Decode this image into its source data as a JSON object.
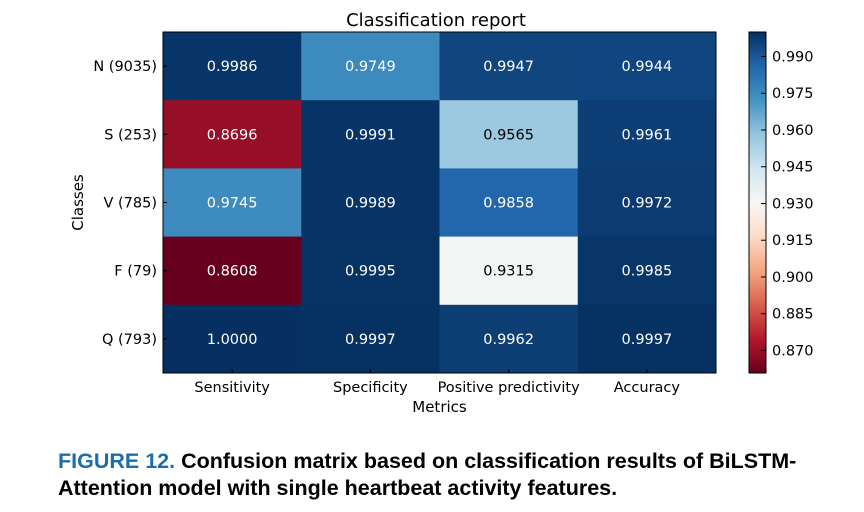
{
  "chart_data": {
    "type": "heatmap",
    "title": "Classification report",
    "xlabel": "Metrics",
    "ylabel": "Classes",
    "columns": [
      "Sensitivity",
      "Specificity",
      "Positive predictivity",
      "Accuracy"
    ],
    "rows": [
      "N (9035)",
      "S (253)",
      "V (785)",
      "F (79)",
      "Q (793)"
    ],
    "values": [
      [
        0.9986,
        0.9749,
        0.9947,
        0.9944
      ],
      [
        0.8696,
        0.9991,
        0.9565,
        0.9961
      ],
      [
        0.9745,
        0.9989,
        0.9858,
        0.9972
      ],
      [
        0.8608,
        0.9995,
        0.9315,
        0.9985
      ],
      [
        1.0,
        0.9997,
        0.9962,
        0.9997
      ]
    ],
    "value_labels": [
      [
        "0.9986",
        "0.9749",
        "0.9947",
        "0.9944"
      ],
      [
        "0.8696",
        "0.9991",
        "0.9565",
        "0.9961"
      ],
      [
        "0.9745",
        "0.9989",
        "0.9858",
        "0.9972"
      ],
      [
        "0.8608",
        "0.9995",
        "0.9315",
        "0.9985"
      ],
      [
        "1.0000",
        "0.9997",
        "0.9962",
        "0.9997"
      ]
    ],
    "colormap": "RdBu",
    "colorbar": {
      "range": [
        0.8608,
        1.0
      ],
      "ticks": [
        0.87,
        0.885,
        0.9,
        0.915,
        0.93,
        0.945,
        0.96,
        0.975,
        0.99
      ],
      "tick_labels": [
        "0.870",
        "0.885",
        "0.900",
        "0.915",
        "0.930",
        "0.945",
        "0.960",
        "0.975",
        "0.990"
      ]
    }
  },
  "caption": {
    "label": "FIGURE 12.",
    "text": "Confusion matrix based on classification results of BiLSTM-Attention model with single heartbeat activity features."
  }
}
